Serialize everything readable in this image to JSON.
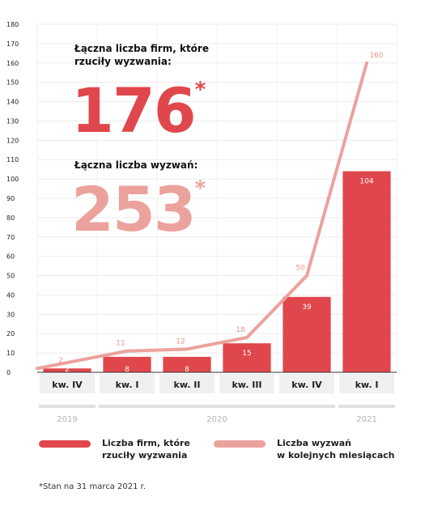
{
  "headline": {
    "firms_label_line1": "Łączna liczba firm, które",
    "firms_label_line2": "rzuciły wyzwania:",
    "firms_value": "176",
    "firms_asterisk": "*",
    "challenges_label": "Łączna liczba wyzwań:",
    "challenges_value": "253",
    "challenges_asterisk": "*"
  },
  "chart_data": {
    "type": "bar",
    "categories": [
      "kw. IV",
      "kw. I",
      "kw. II",
      "kw. III",
      "kw. IV",
      "kw. I"
    ],
    "years": [
      {
        "label": "2019",
        "from": 0,
        "to": 0
      },
      {
        "label": "2020",
        "from": 1,
        "to": 4
      },
      {
        "label": "2021",
        "from": 5,
        "to": 5
      }
    ],
    "ylim": [
      0,
      180
    ],
    "yticks": [
      0,
      10,
      20,
      30,
      40,
      50,
      60,
      70,
      80,
      90,
      100,
      110,
      120,
      130,
      140,
      150,
      160,
      170,
      180
    ],
    "grid": true,
    "series": [
      {
        "name": "Liczba firm, które rzuciły wyzwania",
        "kind": "bar",
        "color": "#e0474c",
        "values": [
          2,
          8,
          8,
          15,
          39,
          104
        ]
      },
      {
        "name": "Liczba wyzwań w kolejnych miesiącach",
        "kind": "line",
        "color": "#eca29c",
        "values": [
          2,
          11,
          12,
          18,
          50,
          160
        ]
      }
    ]
  },
  "legend": {
    "bar_line1": "Liczba firm, które",
    "bar_line2": "rzuciły wyzwania",
    "line_line1": "Liczba wyzwań",
    "line_line2": "w kolejnych miesiącach"
  },
  "footnote": "*Stan na 31 marca 2021 r.",
  "colors": {
    "bar": "#e0474c",
    "line": "#eca29c",
    "firms_number": "#e0474c",
    "challenges_number": "#eca29c",
    "year_bar": "#e0e0e0"
  }
}
